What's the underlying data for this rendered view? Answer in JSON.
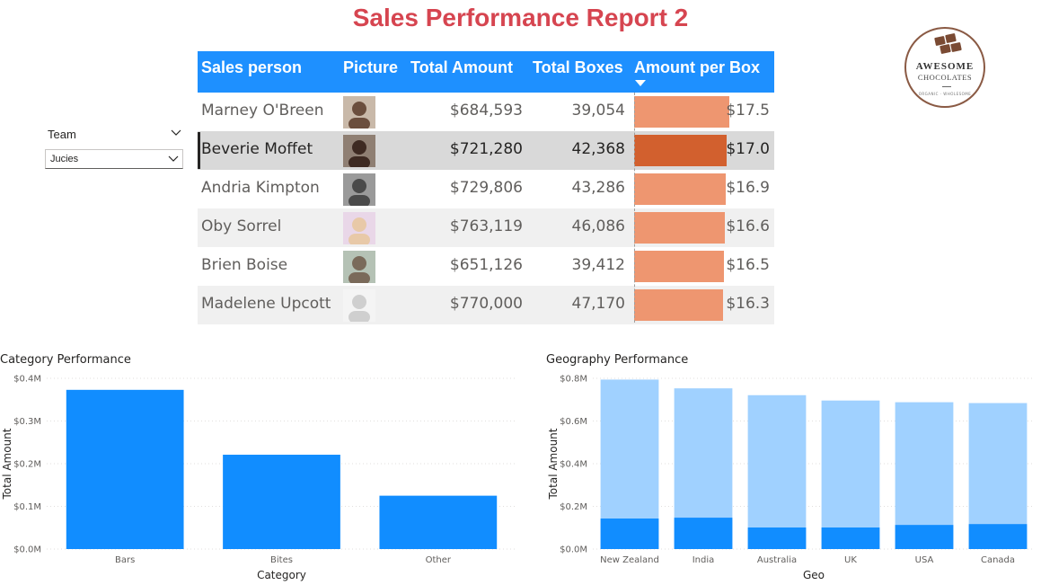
{
  "report": {
    "title": "Sales Performance Report 2"
  },
  "logo": {
    "line1": "AWESOME",
    "line2": "CHOCOLATES",
    "tagline": "ORGANIC · WHOLESOME",
    "icon": "chocolate-boxes-icon"
  },
  "slicer": {
    "label": "Team",
    "selected": "Jucies"
  },
  "table": {
    "headers": {
      "sales_person": "Sales person",
      "picture": "Picture",
      "total_amount": "Total Amount",
      "total_boxes": "Total Boxes",
      "amount_per_box": "Amount per Box"
    },
    "sorted_column": "amount_per_box",
    "sort_direction": "descending",
    "bar_max": 17.5,
    "rows": [
      {
        "name": "Marney O'Breen",
        "total_amount": "$684,593",
        "total_boxes": "39,054",
        "amount_per_box": "$17.5",
        "apb_value": 17.5,
        "selected": false
      },
      {
        "name": "Beverie Moffet",
        "total_amount": "$721,280",
        "total_boxes": "42,368",
        "amount_per_box": "$17.0",
        "apb_value": 17.0,
        "selected": true
      },
      {
        "name": "Andria Kimpton",
        "total_amount": "$729,806",
        "total_boxes": "43,286",
        "amount_per_box": "$16.9",
        "apb_value": 16.9,
        "selected": false
      },
      {
        "name": "Oby Sorrel",
        "total_amount": "$763,119",
        "total_boxes": "46,086",
        "amount_per_box": "$16.6",
        "apb_value": 16.6,
        "selected": false
      },
      {
        "name": "Brien Boise",
        "total_amount": "$651,126",
        "total_boxes": "39,412",
        "amount_per_box": "$16.5",
        "apb_value": 16.5,
        "selected": false
      },
      {
        "name": "Madelene Upcott",
        "total_amount": "$770,000",
        "total_boxes": "47,170",
        "amount_per_box": "$16.3",
        "apb_value": 16.3,
        "selected": false
      }
    ]
  },
  "colors": {
    "accent": "#1e90ff",
    "title": "#d64550",
    "bar_data": "#ee9670",
    "bar_selected": "#d2602e",
    "chart_highlight": "#118dff",
    "chart_base": "#a0d1ff"
  },
  "chart_data": [
    {
      "type": "bar",
      "title": "Category Performance",
      "xlabel": "Category",
      "ylabel": "Total Amount",
      "categories": [
        "Bars",
        "Bites",
        "Other"
      ],
      "values": [
        0.373,
        0.221,
        0.125
      ],
      "yticks": [
        "$0.0M",
        "$0.1M",
        "$0.2M",
        "$0.3M",
        "$0.4M"
      ],
      "ylim": [
        0,
        0.4
      ],
      "grid": true
    },
    {
      "type": "bar",
      "title": "Geography Performance",
      "xlabel": "Geo",
      "ylabel": "Total Amount",
      "categories": [
        "New Zealand",
        "India",
        "Australia",
        "UK",
        "USA",
        "Canada"
      ],
      "series": [
        {
          "values": [
            0.794,
            0.753,
            0.721,
            0.696,
            0.688,
            0.684
          ]
        },
        {
          "values": [
            0.143,
            0.147,
            0.101,
            0.101,
            0.113,
            0.117
          ]
        }
      ],
      "yticks": [
        "$0.0M",
        "$0.2M",
        "$0.4M",
        "$0.6M",
        "$0.8M"
      ],
      "ylim": [
        0,
        0.8
      ],
      "grid": true
    }
  ]
}
